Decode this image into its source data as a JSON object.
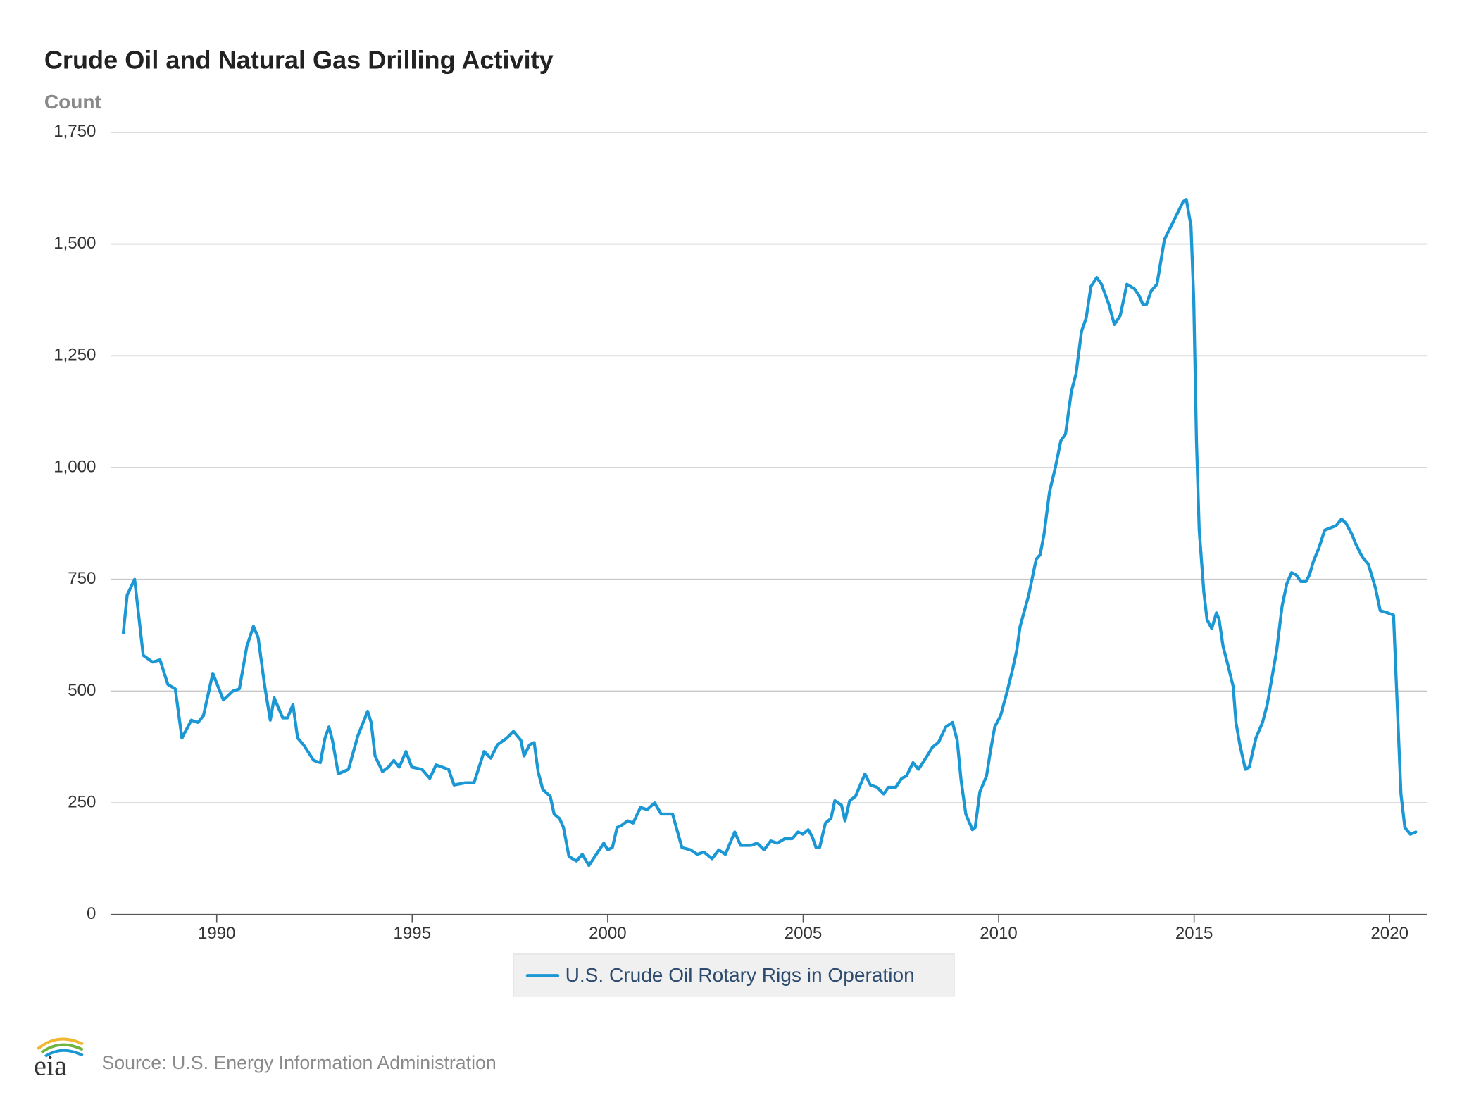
{
  "chart_data": {
    "type": "line",
    "title": "Crude Oil and Natural Gas Drilling Activity",
    "y_label": "Count",
    "source": "Source: U.S. Energy Information Administration",
    "logo": "eia",
    "legend": "bottom",
    "grid": true,
    "xlim": [
      1987.3,
      2020.96
    ],
    "ylim": [
      0,
      1750
    ],
    "xticks": [
      1990,
      1995,
      2000,
      2005,
      2010,
      2015,
      2020
    ],
    "yticks": [
      0,
      250,
      500,
      750,
      {
        "value": 1000,
        "label": "1,000"
      },
      {
        "value": 1250,
        "label": "1,250"
      },
      {
        "value": 1500,
        "label": "1,500"
      },
      {
        "value": 1750,
        "label": "1,750"
      }
    ],
    "x": [
      1987.61,
      1987.71,
      1987.9,
      1988.12,
      1988.36,
      1988.55,
      1988.75,
      1988.94,
      1989.11,
      1989.35,
      1989.52,
      1989.66,
      1989.9,
      1990.17,
      1990.41,
      1990.58,
      1990.77,
      1990.94,
      1991.06,
      1991.23,
      1991.37,
      1991.47,
      1991.69,
      1991.81,
      1991.95,
      1992.07,
      1992.22,
      1992.48,
      1992.65,
      1992.77,
      1992.87,
      1992.96,
      1993.11,
      1993.37,
      1993.61,
      1993.86,
      1993.95,
      1994.05,
      1994.24,
      1994.39,
      1994.53,
      1994.67,
      1994.84,
      1994.99,
      1995.25,
      1995.45,
      1995.61,
      1995.93,
      1996.07,
      1996.36,
      1996.58,
      1996.84,
      1997.01,
      1997.18,
      1997.42,
      1997.59,
      1997.78,
      1997.86,
      1998.0,
      1998.12,
      1998.22,
      1998.34,
      1998.53,
      1998.63,
      1998.77,
      1998.87,
      1999.01,
      1999.2,
      1999.35,
      1999.52,
      1999.71,
      1999.9,
      2000.0,
      2000.12,
      2000.24,
      2000.36,
      2000.51,
      2000.65,
      2000.84,
      2001.01,
      2001.2,
      2001.37,
      2001.66,
      2001.9,
      2002.12,
      2002.29,
      2002.46,
      2002.67,
      2002.84,
      2003.01,
      2003.25,
      2003.4,
      2003.66,
      2003.83,
      2004.0,
      2004.17,
      2004.34,
      2004.53,
      2004.72,
      2004.87,
      2004.99,
      2005.13,
      2005.23,
      2005.33,
      2005.42,
      2005.57,
      2005.71,
      2005.81,
      2005.98,
      2006.07,
      2006.19,
      2006.34,
      2006.46,
      2006.58,
      2006.72,
      2006.89,
      2007.06,
      2007.18,
      2007.37,
      2007.52,
      2007.64,
      2007.81,
      2007.95,
      2008.17,
      2008.31,
      2008.46,
      2008.65,
      2008.82,
      2008.94,
      2009.04,
      2009.16,
      2009.33,
      2009.4,
      2009.52,
      2009.69,
      2009.78,
      2009.9,
      2010.05,
      2010.22,
      2010.36,
      2010.46,
      2010.55,
      2010.77,
      2010.96,
      2011.06,
      2011.16,
      2011.3,
      2011.45,
      2011.59,
      2011.71,
      2011.86,
      2011.98,
      2012.12,
      2012.24,
      2012.36,
      2012.51,
      2012.63,
      2012.82,
      2012.96,
      2013.11,
      2013.28,
      2013.47,
      2013.59,
      2013.69,
      2013.78,
      2013.9,
      2014.05,
      2014.24,
      2014.41,
      2014.58,
      2014.72,
      2014.8,
      2014.92,
      2014.99,
      2015.06,
      2015.13,
      2015.25,
      2015.33,
      2015.45,
      2015.57,
      2015.64,
      2015.74,
      2015.86,
      2016.0,
      2016.07,
      2016.17,
      2016.31,
      2016.41,
      2016.58,
      2016.75,
      2016.87,
      2016.99,
      2017.11,
      2017.25,
      2017.37,
      2017.49,
      2017.61,
      2017.73,
      2017.86,
      2017.95,
      2018.05,
      2018.19,
      2018.34,
      2018.48,
      2018.63,
      2018.77,
      2018.89,
      2019.04,
      2019.13,
      2019.3,
      2019.45,
      2019.54,
      2019.64,
      2019.76,
      2019.95,
      2020.1,
      2020.19,
      2020.29,
      2020.39,
      2020.53,
      2020.67
    ],
    "series": [
      {
        "name": "U.S. Crude Oil Rotary Rigs in Operation",
        "color": "#1b97d4",
        "values": [
          630,
          715,
          750,
          580,
          565,
          570,
          515,
          505,
          395,
          435,
          430,
          445,
          540,
          480,
          500,
          505,
          600,
          645,
          620,
          510,
          435,
          485,
          440,
          440,
          470,
          395,
          380,
          345,
          340,
          395,
          420,
          390,
          315,
          325,
          400,
          455,
          430,
          355,
          320,
          330,
          345,
          330,
          365,
          330,
          325,
          305,
          335,
          325,
          290,
          295,
          295,
          365,
          350,
          380,
          395,
          410,
          390,
          355,
          380,
          385,
          320,
          280,
          265,
          225,
          215,
          195,
          130,
          120,
          135,
          110,
          135,
          160,
          145,
          150,
          195,
          200,
          210,
          205,
          240,
          235,
          250,
          225,
          225,
          150,
          145,
          135,
          140,
          125,
          145,
          135,
          185,
          155,
          155,
          160,
          145,
          165,
          160,
          170,
          170,
          185,
          180,
          190,
          175,
          150,
          150,
          205,
          215,
          255,
          245,
          210,
          255,
          265,
          290,
          315,
          290,
          285,
          270,
          285,
          285,
          305,
          310,
          340,
          325,
          355,
          375,
          385,
          420,
          430,
          390,
          300,
          225,
          190,
          195,
          275,
          310,
          360,
          420,
          445,
          500,
          550,
          590,
          645,
          715,
          795,
          805,
          850,
          945,
          1000,
          1060,
          1075,
          1170,
          1210,
          1305,
          1335,
          1405,
          1425,
          1410,
          1365,
          1320,
          1340,
          1410,
          1400,
          1385,
          1365,
          1365,
          1395,
          1410,
          1510,
          1540,
          1570,
          1595,
          1600,
          1540,
          1375,
          1060,
          860,
          720,
          660,
          640,
          675,
          660,
          600,
          560,
          510,
          430,
          380,
          325,
          330,
          395,
          430,
          470,
          530,
          590,
          690,
          740,
          765,
          760,
          745,
          745,
          760,
          790,
          820,
          860,
          865,
          870,
          885,
          875,
          850,
          830,
          800,
          785,
          760,
          730,
          680,
          675,
          670,
          480,
          270,
          195,
          180,
          185
        ]
      }
    ]
  }
}
